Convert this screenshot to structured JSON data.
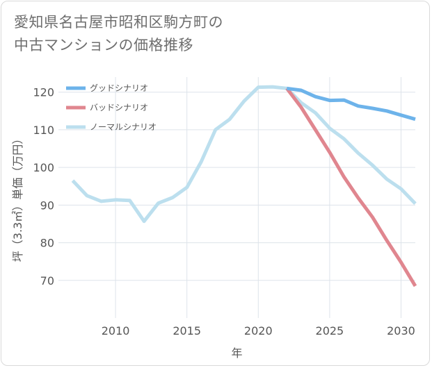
{
  "chart_data": {
    "type": "line",
    "title": "愛知県名古屋市昭和区駒方町の\n中古マンションの価格推移",
    "xlabel": "年",
    "ylabel": "坪（3.3㎡）単価（万円）",
    "xlim": [
      2006,
      2031
    ],
    "ylim": [
      60,
      124
    ],
    "x_ticks": [
      2010,
      2015,
      2020,
      2025,
      2030
    ],
    "y_ticks": [
      70,
      80,
      90,
      100,
      110,
      120
    ],
    "x_tick_labels": [
      "2010",
      "2015",
      "2020",
      "2025",
      "2030"
    ],
    "y_tick_labels": [
      "70",
      "80",
      "90",
      "100",
      "110",
      "120"
    ],
    "grid": true,
    "legend_position": "top-left",
    "series": [
      {
        "name": "グッドシナリオ",
        "color": "#6db3ea",
        "x": [
          2022,
          2023,
          2024,
          2025,
          2026,
          2027,
          2028,
          2029,
          2030,
          2031
        ],
        "y": [
          121.0,
          120.5,
          118.8,
          117.8,
          117.9,
          116.3,
          115.7,
          115.0,
          113.9,
          112.8
        ]
      },
      {
        "name": "バッドシナリオ",
        "color": "#e0868f",
        "x": [
          2022,
          2023,
          2024,
          2025,
          2026,
          2027,
          2028,
          2029,
          2030,
          2031
        ],
        "y": [
          121.0,
          116.0,
          110.0,
          104.0,
          97.5,
          91.9,
          86.8,
          80.6,
          74.8,
          68.5
        ]
      },
      {
        "name": "ノーマルシナリオ",
        "color": "#bcdfee",
        "x": [
          2007,
          2008,
          2009,
          2010,
          2011,
          2012,
          2013,
          2014,
          2015,
          2016,
          2017,
          2018,
          2019,
          2020,
          2021,
          2022,
          2023,
          2024,
          2025,
          2026,
          2027,
          2028,
          2029,
          2030,
          2031
        ],
        "y": [
          96.5,
          92.5,
          91.0,
          91.4,
          91.2,
          85.7,
          90.5,
          92.0,
          94.7,
          101.5,
          110.0,
          112.8,
          117.6,
          121.3,
          121.4,
          121.0,
          117.2,
          114.5,
          110.4,
          107.6,
          103.8,
          100.6,
          96.9,
          94.3,
          90.4
        ]
      }
    ]
  }
}
